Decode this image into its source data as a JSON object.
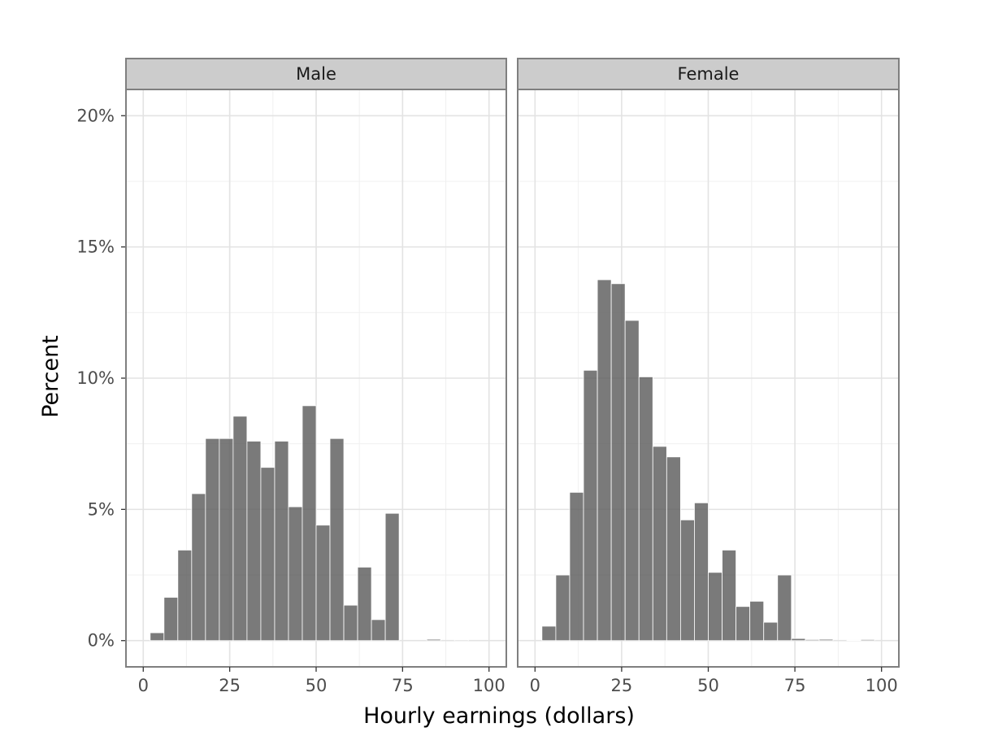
{
  "chart_data": {
    "type": "bar",
    "subtype": "faceted-histogram",
    "xlabel": "Hourly earnings (dollars)",
    "ylabel": "Percent",
    "xlim": [
      -5,
      105
    ],
    "ylim": [
      -1,
      21
    ],
    "x_ticks": [
      0,
      25,
      50,
      75,
      100
    ],
    "y_ticks": [
      0,
      5,
      10,
      15,
      20
    ],
    "y_tick_labels": [
      "0%",
      "5%",
      "10%",
      "15%",
      "20%"
    ],
    "bin_width": 4,
    "bin_starts": [
      2,
      6,
      10,
      14,
      18,
      22,
      26,
      30,
      34,
      38,
      42,
      46,
      50,
      54,
      58,
      62,
      66,
      70,
      74,
      78,
      82,
      86,
      90,
      94
    ],
    "grid": true,
    "bar_color": "#595959",
    "panels": [
      {
        "label": "Male",
        "values": [
          0.3,
          1.65,
          3.45,
          5.6,
          7.7,
          7.7,
          8.55,
          7.6,
          6.6,
          7.6,
          5.1,
          8.95,
          4.4,
          7.7,
          1.35,
          2.8,
          0.8,
          4.85,
          0.0,
          0.0,
          0.05,
          0.0,
          0.03,
          0.0
        ]
      },
      {
        "label": "Female",
        "values": [
          0.55,
          2.5,
          5.65,
          10.3,
          13.75,
          13.6,
          12.2,
          10.05,
          7.4,
          7.0,
          4.6,
          5.25,
          2.6,
          3.45,
          1.3,
          1.5,
          0.7,
          2.5,
          0.08,
          0.04,
          0.05,
          0.0,
          0.02,
          0.04
        ]
      }
    ]
  }
}
